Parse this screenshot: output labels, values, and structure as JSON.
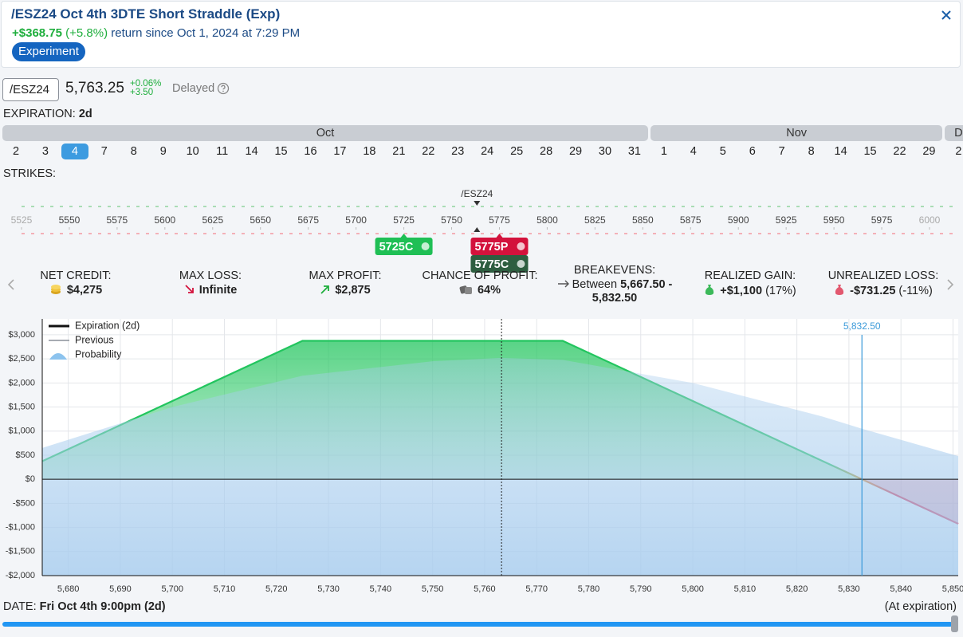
{
  "header": {
    "title": "/ESZ24 Oct 4th 3DTE Short Straddle (Exp)",
    "return_amount": "+$368.75",
    "return_pct": "(+5.8%)",
    "return_text": "return since Oct 1, 2024 at 7:29 PM",
    "badge": "Experiment"
  },
  "quote": {
    "symbol": "/ESZ24",
    "price": {
      "value": 5763.25,
      "label": "5,763.25"
    },
    "change_pct": "+0.06%",
    "change": "+3.50",
    "status": "Delayed"
  },
  "expiration": {
    "label": "EXPIRATION:",
    "value": "2d"
  },
  "calendar": {
    "months": [
      {
        "name": "Oct",
        "days": [
          2,
          3,
          4,
          7,
          8,
          9,
          10,
          11,
          14,
          15,
          16,
          17,
          18,
          21,
          22,
          23,
          24,
          25,
          28,
          29,
          30,
          31
        ]
      },
      {
        "name": "Nov",
        "days": [
          1,
          4,
          5,
          6,
          7,
          8,
          14,
          15,
          22,
          29
        ]
      },
      {
        "name": "D",
        "days": [
          2
        ]
      }
    ],
    "selected": {
      "month": "Oct",
      "day": 4
    }
  },
  "strikes": {
    "label": "STRIKES:",
    "ticks": [
      5525,
      5550,
      5575,
      5600,
      5625,
      5650,
      5675,
      5700,
      5725,
      5750,
      5775,
      5800,
      5825,
      5850,
      5875,
      5900,
      5925,
      5950,
      5975,
      6000
    ],
    "legs": [
      {
        "label": "5725C",
        "strike": 5725,
        "color": "#1fbf55"
      },
      {
        "label": "5775P",
        "strike": 5775,
        "color": "#d3123c"
      },
      {
        "label": "5775C",
        "strike": 5775,
        "color": "#2e5e40"
      }
    ]
  },
  "stats": [
    {
      "label": "NET CREDIT:",
      "value": "$4,275"
    },
    {
      "label": "MAX LOSS:",
      "value": "Infinite"
    },
    {
      "label": "MAX PROFIT:",
      "value": "$2,875"
    },
    {
      "label": "CHANCE OF PROFIT:",
      "value": "64%"
    },
    {
      "label": "BREAKEVENS:",
      "prefix": "Between",
      "value": "5,667.50",
      "separator": "-",
      "value2": "5,832.50"
    },
    {
      "label": "REALIZED GAIN:",
      "value": "+$1,100",
      "note": "(17%)"
    },
    {
      "label": "UNREALIZED LOSS:",
      "value": "-$731.25",
      "note": "(-11%)"
    }
  ],
  "chart_data": {
    "type": "line",
    "x": [
      5675,
      5700,
      5725,
      5750,
      5763.25,
      5775,
      5800,
      5825,
      5832.5,
      5851
    ],
    "series": [
      {
        "name": "Expiration (2d)",
        "color": "#22c55e",
        "negative_color": "#e0173c",
        "legend_color": "#111111",
        "values": [
          375,
          1625,
          2875,
          2875,
          2875,
          2875,
          1625,
          375,
          0,
          -925
        ]
      },
      {
        "name": "Previous",
        "color": "#8a8f98",
        "legend_color": "#8a8f98",
        "values": [
          null,
          null,
          null,
          null,
          null,
          null,
          null,
          null,
          null,
          null
        ]
      },
      {
        "name": "Probability",
        "color": "#a9cdee",
        "legend_color": "#8cc3ee",
        "area": true,
        "values": [
          650,
          1500,
          2150,
          2450,
          2520,
          2480,
          2000,
          1300,
          1050,
          480
        ]
      }
    ],
    "xlim": [
      5675,
      5851
    ],
    "ylim": [
      -2000,
      3330
    ],
    "xticks": [
      {
        "value": 5680,
        "label": "5,680"
      },
      {
        "value": 5690,
        "label": "5,690"
      },
      {
        "value": 5700,
        "label": "5,700"
      },
      {
        "value": 5710,
        "label": "5,710"
      },
      {
        "value": 5720,
        "label": "5,720"
      },
      {
        "value": 5730,
        "label": "5,730"
      },
      {
        "value": 5740,
        "label": "5,740"
      },
      {
        "value": 5750,
        "label": "5,750"
      },
      {
        "value": 5760,
        "label": "5,760"
      },
      {
        "value": 5770,
        "label": "5,770"
      },
      {
        "value": 5780,
        "label": "5,780"
      },
      {
        "value": 5790,
        "label": "5,790"
      },
      {
        "value": 5800,
        "label": "5,800"
      },
      {
        "value": 5810,
        "label": "5,810"
      },
      {
        "value": 5820,
        "label": "5,820"
      },
      {
        "value": 5830,
        "label": "5,830"
      },
      {
        "value": 5840,
        "label": "5,840"
      },
      {
        "value": 5850,
        "label": "5,850"
      }
    ],
    "yticks": [
      {
        "value": -2000,
        "label": "-$2,000"
      },
      {
        "value": -1500,
        "label": "-$1,500"
      },
      {
        "value": -1000,
        "label": "-$1,000"
      },
      {
        "value": -500,
        "label": "-$500"
      },
      {
        "value": 0,
        "label": "$0"
      },
      {
        "value": 500,
        "label": "$500"
      },
      {
        "value": 1000,
        "label": "$1,000"
      },
      {
        "value": 1500,
        "label": "$1,500"
      },
      {
        "value": 2000,
        "label": "$2,000"
      },
      {
        "value": 2500,
        "label": "$2,500"
      },
      {
        "value": 3000,
        "label": "$3,000"
      }
    ],
    "grid": true,
    "vlines": [
      {
        "value": 5832.5,
        "label": "5,832.50",
        "color": "#3b9ad9"
      }
    ]
  },
  "footer": {
    "date_label": "DATE:",
    "date_value": "Fri Oct 4th 9:00pm (2d)",
    "right": "(At expiration)"
  }
}
